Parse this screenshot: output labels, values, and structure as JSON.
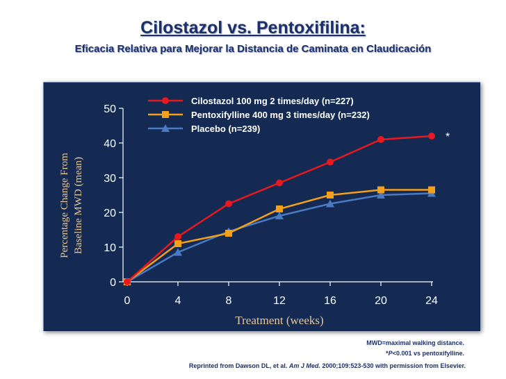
{
  "slide": {
    "title": "Cilostazol vs. Pentoxifilina:",
    "subtitle": "Eficacia Relativa para Mejorar la Distancia de Caminata en Claudicación"
  },
  "footnotes": {
    "mwd": "MWD=maximal walking distance.",
    "p_prefix": "*",
    "p_italic": "P",
    "p_rest": "<0.001 vs pentoxifylline.",
    "citation_pre": "Reprinted from Dawson DL, et al. ",
    "citation_journal": "Am J Med.",
    "citation_post": " 2000;109:523-530 with permission from Elsevier."
  },
  "colors": {
    "panel": "#142a52",
    "cilostazol": "#e8191e",
    "pentoxifylline": "#f5a01a",
    "placebo": "#4a7ac4",
    "text": "#ffffff",
    "ylabel": "#e7c79a"
  },
  "chart_data": {
    "type": "line",
    "title": "",
    "xlabel": "Treatment (weeks)",
    "ylabel": "Percentage Change From Baseline MWD (mean)",
    "x": [
      0,
      4,
      8,
      12,
      16,
      20,
      24
    ],
    "xticks": [
      0,
      4,
      8,
      12,
      16,
      20,
      24
    ],
    "yticks": [
      0,
      10,
      20,
      30,
      40,
      50
    ],
    "xlim": [
      0,
      24
    ],
    "ylim": [
      0,
      50
    ],
    "legend_position": "top",
    "series": [
      {
        "name": "Cilostazol 100 mg 2 times/day (n=227)",
        "marker": "circle",
        "values": [
          0,
          13,
          22.5,
          28.5,
          34.5,
          41,
          42
        ]
      },
      {
        "name": "Pentoxifylline 400 mg 3 times/day (n=232)",
        "marker": "square",
        "values": [
          0,
          11,
          14,
          21,
          25,
          26.5,
          26.5
        ]
      },
      {
        "name": "Placebo (n=239)",
        "marker": "triangle",
        "values": [
          0,
          8.5,
          14.5,
          19,
          22.5,
          25,
          25.5
        ]
      }
    ],
    "annotations": [
      {
        "text": "*",
        "x": 24,
        "series": "Cilostazol 100 mg 2 times/day (n=227)"
      }
    ]
  }
}
